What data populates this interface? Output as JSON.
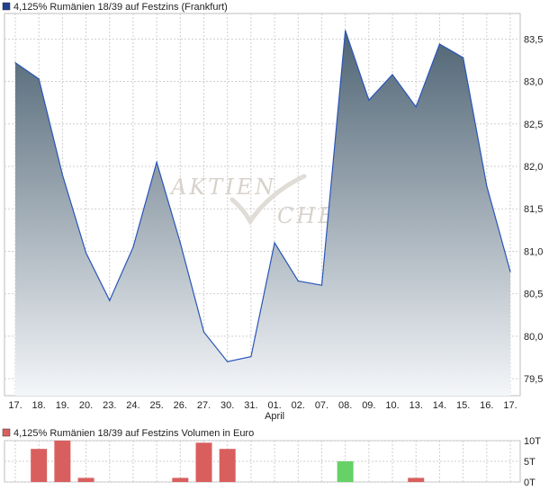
{
  "chart_data": [
    {
      "type": "area",
      "title": "4,125% Rumänien 18/39 auf Festzins (Frankfurt)",
      "legend_color": "#1f3f8f",
      "line_color": "#2a56b8",
      "fill_top_color": "#4f6474",
      "fill_bottom_color": "#f4f6f9",
      "watermark_lines": [
        "AKTIEN",
        "CHECK"
      ],
      "x": [
        "17.",
        "18.",
        "19.",
        "20.",
        "23.",
        "24.",
        "25.",
        "26.",
        "27.",
        "30.",
        "31.",
        "01.",
        "02.",
        "07.",
        "08.",
        "09.",
        "10.",
        "13.",
        "14.",
        "15.",
        "16.",
        "17."
      ],
      "x_sublabel": {
        "index": 11,
        "text": "April"
      },
      "values": [
        83.22,
        83.03,
        81.9,
        80.98,
        80.42,
        81.05,
        82.05,
        81.1,
        80.05,
        79.7,
        79.76,
        81.1,
        80.65,
        80.6,
        83.6,
        82.78,
        83.08,
        82.7,
        83.44,
        83.28,
        81.77,
        80.76
      ],
      "y_ticks": [
        "83,5",
        "83,0",
        "82,5",
        "82,0",
        "81,5",
        "81,0",
        "80,5",
        "80,0",
        "79,5"
      ],
      "y_tick_values": [
        83.5,
        83.0,
        82.5,
        82.0,
        81.5,
        81.0,
        80.5,
        80.0,
        79.5
      ],
      "ylim": [
        79.3,
        83.8
      ],
      "grid": true
    },
    {
      "type": "bar",
      "title": "4,125% Rumänien 18/39 auf Festzins Volumen in Euro",
      "legend_color": "#d95f5f",
      "colors": {
        "down": "#d95f5f",
        "up": "#66d166"
      },
      "values": [
        0,
        8,
        10,
        1,
        0,
        0,
        0,
        1,
        9.5,
        8,
        0,
        0,
        0,
        0,
        5,
        0,
        0,
        1,
        0,
        0,
        0,
        0
      ],
      "directions": [
        "none",
        "down",
        "down",
        "down",
        "none",
        "none",
        "none",
        "down",
        "down",
        "down",
        "none",
        "none",
        "none",
        "none",
        "up",
        "none",
        "none",
        "down",
        "none",
        "none",
        "none",
        "none"
      ],
      "y_ticks": [
        "10T",
        "5T",
        "0T"
      ],
      "y_tick_values": [
        10,
        5,
        0
      ],
      "ylim": [
        0,
        10
      ],
      "grid": true
    }
  ]
}
